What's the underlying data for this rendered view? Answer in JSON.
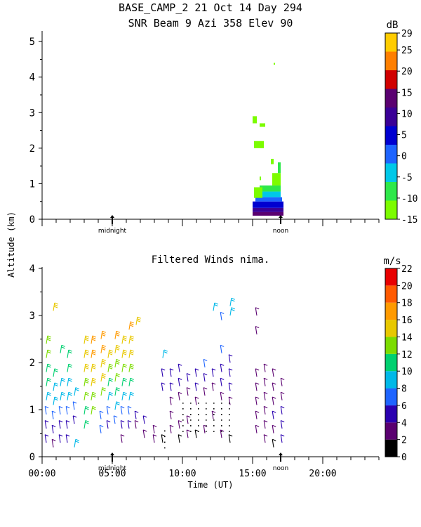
{
  "header": {
    "line1": "BASE_CAMP_2  21 Oct 14 Day 294",
    "line2": "SNR Beam 9 Azi 358 Elev 90"
  },
  "shared": {
    "ylabel": "Altitude (km)",
    "xlabel": "Time (UT)",
    "x_ticklabels": [
      "00:00",
      "05:00",
      "10:00",
      "15:00",
      "20:00"
    ],
    "markers": [
      "midnight",
      "noon"
    ],
    "colors": {
      "snr": [
        "#7cfc00",
        "#2ee84a",
        "#00c8e8",
        "#1e64ff",
        "#0000d0",
        "#3a0096",
        "#5a0070",
        "#d00000",
        "#ff7f00",
        "#ffcc00"
      ],
      "wind": [
        "#000000",
        "#5a0070",
        "#2a00b0",
        "#1e64ff",
        "#00b8e8",
        "#00d070",
        "#7cdc00",
        "#e8c800",
        "#ff9a00",
        "#ff5a00",
        "#e80000"
      ]
    }
  },
  "chart_data": [
    {
      "type": "heatmap",
      "title": "",
      "xlabel": "",
      "ylabel": "Altitude (km)",
      "colorbar_unit": "dB",
      "colorbar_ticks": [
        "29",
        "25",
        "20",
        "15",
        "10",
        "5",
        "0",
        "-5",
        "-10",
        "-15"
      ],
      "x_range_hours": [
        0,
        24
      ],
      "ylim": [
        0,
        5.3
      ],
      "yticks": [
        "0",
        "1",
        "2",
        "3",
        "4",
        "5"
      ],
      "cells": [
        {
          "x0": 15.0,
          "x1": 17.2,
          "y0": 0.1,
          "y1": 0.2,
          "v": 16
        },
        {
          "x0": 15.0,
          "x1": 17.2,
          "y0": 0.2,
          "y1": 0.32,
          "v": 12
        },
        {
          "x0": 15.0,
          "x1": 17.2,
          "y0": 0.32,
          "y1": 0.5,
          "v": 8
        },
        {
          "x0": 15.2,
          "x1": 17.1,
          "y0": 0.5,
          "y1": 0.62,
          "v": 1
        },
        {
          "x0": 15.3,
          "x1": 17.0,
          "y0": 0.62,
          "y1": 0.78,
          "v": -4
        },
        {
          "x0": 15.5,
          "x1": 17.0,
          "y0": 0.78,
          "y1": 0.95,
          "v": -7
        },
        {
          "x0": 15.1,
          "x1": 15.7,
          "y0": 0.6,
          "y1": 0.9,
          "v": -11
        },
        {
          "x0": 16.4,
          "x1": 17.0,
          "y0": 0.95,
          "y1": 1.3,
          "v": -11
        },
        {
          "x0": 16.8,
          "x1": 17.0,
          "y0": 1.3,
          "y1": 1.6,
          "v": -6
        },
        {
          "x0": 15.1,
          "x1": 15.8,
          "y0": 2.0,
          "y1": 2.2,
          "v": -11
        },
        {
          "x0": 15.0,
          "x1": 15.3,
          "y0": 2.7,
          "y1": 2.9,
          "v": -13
        },
        {
          "x0": 15.5,
          "x1": 15.9,
          "y0": 2.6,
          "y1": 2.7,
          "v": -13
        },
        {
          "x0": 16.3,
          "x1": 16.5,
          "y0": 1.55,
          "y1": 1.7,
          "v": -13
        },
        {
          "x0": 15.5,
          "x1": 15.6,
          "y0": 1.1,
          "y1": 1.2,
          "v": -13
        },
        {
          "x0": 16.5,
          "x1": 16.6,
          "y0": 4.35,
          "y1": 4.4,
          "v": -13
        }
      ]
    },
    {
      "type": "scatter",
      "title": "Filtered Winds nima.",
      "xlabel": "Time (UT)",
      "ylabel": "Altitude (km)",
      "colorbar_unit": "m/s",
      "colorbar_ticks": [
        "22",
        "20",
        "18",
        "16",
        "14",
        "12",
        "10",
        "8",
        "6",
        "4",
        "2",
        "0"
      ],
      "x_range_hours": [
        0,
        24
      ],
      "ylim": [
        0,
        4.0
      ],
      "yticks": [
        "0",
        "1",
        "2",
        "3",
        "4"
      ],
      "barbs": [
        {
          "t": 0.3,
          "z": 0.3,
          "s": 4
        },
        {
          "t": 0.3,
          "z": 0.6,
          "s": 5
        },
        {
          "t": 0.3,
          "z": 0.9,
          "s": 7
        },
        {
          "t": 0.3,
          "z": 1.2,
          "s": 9
        },
        {
          "t": 0.3,
          "z": 1.5,
          "s": 10
        },
        {
          "t": 0.3,
          "z": 1.8,
          "s": 11
        },
        {
          "t": 0.3,
          "z": 2.1,
          "s": 12
        },
        {
          "t": 0.3,
          "z": 2.4,
          "s": 13
        },
        {
          "t": 0.8,
          "z": 0.2,
          "s": 3
        },
        {
          "t": 0.8,
          "z": 0.5,
          "s": 5
        },
        {
          "t": 0.8,
          "z": 0.8,
          "s": 6
        },
        {
          "t": 0.8,
          "z": 1.1,
          "s": 8
        },
        {
          "t": 0.8,
          "z": 1.4,
          "s": 9
        },
        {
          "t": 0.8,
          "z": 1.7,
          "s": 10
        },
        {
          "t": 0.8,
          "z": 3.1,
          "s": 15
        },
        {
          "t": 1.3,
          "z": 0.3,
          "s": 4
        },
        {
          "t": 1.3,
          "z": 0.6,
          "s": 5
        },
        {
          "t": 1.3,
          "z": 0.9,
          "s": 6
        },
        {
          "t": 1.3,
          "z": 1.2,
          "s": 8
        },
        {
          "t": 1.3,
          "z": 1.5,
          "s": 9
        },
        {
          "t": 1.3,
          "z": 2.2,
          "s": 11
        },
        {
          "t": 1.8,
          "z": 0.3,
          "s": 4
        },
        {
          "t": 1.8,
          "z": 0.6,
          "s": 5
        },
        {
          "t": 1.8,
          "z": 0.9,
          "s": 6
        },
        {
          "t": 1.8,
          "z": 1.2,
          "s": 8
        },
        {
          "t": 1.8,
          "z": 1.5,
          "s": 9
        },
        {
          "t": 1.8,
          "z": 1.8,
          "s": 10
        },
        {
          "t": 1.8,
          "z": 2.1,
          "s": 11
        },
        {
          "t": 2.3,
          "z": 0.2,
          "s": 9
        },
        {
          "t": 2.3,
          "z": 0.7,
          "s": 5
        },
        {
          "t": 2.3,
          "z": 1.0,
          "s": 7
        },
        {
          "t": 2.3,
          "z": 1.3,
          "s": 9
        },
        {
          "t": 3.0,
          "z": 0.6,
          "s": 10
        },
        {
          "t": 3.0,
          "z": 0.9,
          "s": 11
        },
        {
          "t": 3.0,
          "z": 1.2,
          "s": 12
        },
        {
          "t": 3.0,
          "z": 1.5,
          "s": 13
        },
        {
          "t": 3.0,
          "z": 1.8,
          "s": 14
        },
        {
          "t": 3.0,
          "z": 2.1,
          "s": 15
        },
        {
          "t": 3.0,
          "z": 2.4,
          "s": 15
        },
        {
          "t": 3.5,
          "z": 0.9,
          "s": 12
        },
        {
          "t": 3.5,
          "z": 1.2,
          "s": 13
        },
        {
          "t": 3.5,
          "z": 1.5,
          "s": 14
        },
        {
          "t": 3.5,
          "z": 1.8,
          "s": 15
        },
        {
          "t": 3.5,
          "z": 2.1,
          "s": 16
        },
        {
          "t": 3.5,
          "z": 2.4,
          "s": 16
        },
        {
          "t": 4.2,
          "z": 0.5,
          "s": 6
        },
        {
          "t": 4.2,
          "z": 0.8,
          "s": 7
        },
        {
          "t": 4.2,
          "z": 1.3,
          "s": 12
        },
        {
          "t": 4.2,
          "z": 1.6,
          "s": 14
        },
        {
          "t": 4.2,
          "z": 1.9,
          "s": 15
        },
        {
          "t": 4.2,
          "z": 2.2,
          "s": 16
        },
        {
          "t": 4.2,
          "z": 2.5,
          "s": 17
        },
        {
          "t": 4.7,
          "z": 0.6,
          "s": 5
        },
        {
          "t": 4.7,
          "z": 0.9,
          "s": 6
        },
        {
          "t": 4.7,
          "z": 1.2,
          "s": 8
        },
        {
          "t": 4.7,
          "z": 1.5,
          "s": 11
        },
        {
          "t": 4.7,
          "z": 1.8,
          "s": 13
        },
        {
          "t": 4.7,
          "z": 2.1,
          "s": 15
        },
        {
          "t": 5.2,
          "z": 0.7,
          "s": 6
        },
        {
          "t": 5.2,
          "z": 1.0,
          "s": 8
        },
        {
          "t": 5.2,
          "z": 1.3,
          "s": 10
        },
        {
          "t": 5.2,
          "z": 1.6,
          "s": 12
        },
        {
          "t": 5.2,
          "z": 1.9,
          "s": 13
        },
        {
          "t": 5.2,
          "z": 2.2,
          "s": 14
        },
        {
          "t": 5.2,
          "z": 2.5,
          "s": 16
        },
        {
          "t": 5.7,
          "z": 0.3,
          "s": 3
        },
        {
          "t": 5.7,
          "z": 0.6,
          "s": 4
        },
        {
          "t": 5.7,
          "z": 0.9,
          "s": 6
        },
        {
          "t": 5.7,
          "z": 1.2,
          "s": 8
        },
        {
          "t": 5.7,
          "z": 1.5,
          "s": 10
        },
        {
          "t": 5.7,
          "z": 1.8,
          "s": 12
        },
        {
          "t": 5.7,
          "z": 2.1,
          "s": 14
        },
        {
          "t": 5.7,
          "z": 2.4,
          "s": 15
        },
        {
          "t": 6.2,
          "z": 0.6,
          "s": 5
        },
        {
          "t": 6.2,
          "z": 0.9,
          "s": 7
        },
        {
          "t": 6.2,
          "z": 1.2,
          "s": 9
        },
        {
          "t": 6.2,
          "z": 1.5,
          "s": 11
        },
        {
          "t": 6.2,
          "z": 1.8,
          "s": 13
        },
        {
          "t": 6.2,
          "z": 2.1,
          "s": 14
        },
        {
          "t": 6.2,
          "z": 2.4,
          "s": 15
        },
        {
          "t": 6.2,
          "z": 2.7,
          "s": 16
        },
        {
          "t": 6.7,
          "z": 0.6,
          "s": 3
        },
        {
          "t": 6.7,
          "z": 0.8,
          "s": 4
        },
        {
          "t": 6.7,
          "z": 2.8,
          "s": 15
        },
        {
          "t": 7.3,
          "z": 0.4,
          "s": 3
        },
        {
          "t": 7.3,
          "z": 0.7,
          "s": 4
        },
        {
          "t": 8.0,
          "z": 0.3,
          "s": 2
        },
        {
          "t": 8.0,
          "z": 0.5,
          "s": 3
        },
        {
          "t": 8.6,
          "z": 0.3,
          "s": 1
        },
        {
          "t": 8.6,
          "z": 1.4,
          "s": 5
        },
        {
          "t": 8.6,
          "z": 1.7,
          "s": 5
        },
        {
          "t": 8.6,
          "z": 2.1,
          "s": 9
        },
        {
          "t": 9.2,
          "z": 0.5,
          "s": 2
        },
        {
          "t": 9.2,
          "z": 0.8,
          "s": 2
        },
        {
          "t": 9.2,
          "z": 1.1,
          "s": 3
        },
        {
          "t": 9.2,
          "z": 1.4,
          "s": 4
        },
        {
          "t": 9.2,
          "z": 1.7,
          "s": 5
        },
        {
          "t": 9.8,
          "z": 0.3,
          "s": 1
        },
        {
          "t": 9.8,
          "z": 0.6,
          "s": 2
        },
        {
          "t": 9.8,
          "z": 1.2,
          "s": 3
        },
        {
          "t": 9.8,
          "z": 1.5,
          "s": 4
        },
        {
          "t": 9.8,
          "z": 1.8,
          "s": 5
        },
        {
          "t": 10.4,
          "z": 0.4,
          "s": 2
        },
        {
          "t": 10.4,
          "z": 0.7,
          "s": 3
        },
        {
          "t": 10.4,
          "z": 1.3,
          "s": 3
        },
        {
          "t": 10.4,
          "z": 1.6,
          "s": 4
        },
        {
          "t": 11.0,
          "z": 0.4,
          "s": 1
        },
        {
          "t": 11.0,
          "z": 1.1,
          "s": 3
        },
        {
          "t": 11.0,
          "z": 1.4,
          "s": 4
        },
        {
          "t": 11.0,
          "z": 1.7,
          "s": 5
        },
        {
          "t": 11.6,
          "z": 0.5,
          "s": 2
        },
        {
          "t": 11.6,
          "z": 1.3,
          "s": 3
        },
        {
          "t": 11.6,
          "z": 1.6,
          "s": 4
        },
        {
          "t": 11.6,
          "z": 1.9,
          "s": 6
        },
        {
          "t": 12.2,
          "z": 0.8,
          "s": 2
        },
        {
          "t": 12.2,
          "z": 1.4,
          "s": 3
        },
        {
          "t": 12.2,
          "z": 1.7,
          "s": 5
        },
        {
          "t": 12.2,
          "z": 3.1,
          "s": 8
        },
        {
          "t": 12.8,
          "z": 0.4,
          "s": 2
        },
        {
          "t": 12.8,
          "z": 1.2,
          "s": 3
        },
        {
          "t": 12.8,
          "z": 1.5,
          "s": 4
        },
        {
          "t": 12.8,
          "z": 1.8,
          "s": 5
        },
        {
          "t": 12.8,
          "z": 2.2,
          "s": 6
        },
        {
          "t": 12.8,
          "z": 2.9,
          "s": 7
        },
        {
          "t": 13.4,
          "z": 0.3,
          "s": 1
        },
        {
          "t": 13.4,
          "z": 1.1,
          "s": 3
        },
        {
          "t": 13.4,
          "z": 1.4,
          "s": 4
        },
        {
          "t": 13.4,
          "z": 1.7,
          "s": 5
        },
        {
          "t": 13.4,
          "z": 2.0,
          "s": 5
        },
        {
          "t": 13.4,
          "z": 3.0,
          "s": 8
        },
        {
          "t": 13.4,
          "z": 3.2,
          "s": 9
        },
        {
          "t": 15.3,
          "z": 0.5,
          "s": 3
        },
        {
          "t": 15.3,
          "z": 0.8,
          "s": 3
        },
        {
          "t": 15.3,
          "z": 1.1,
          "s": 3
        },
        {
          "t": 15.3,
          "z": 1.4,
          "s": 3
        },
        {
          "t": 15.3,
          "z": 1.7,
          "s": 2
        },
        {
          "t": 15.3,
          "z": 2.6,
          "s": 2
        },
        {
          "t": 15.3,
          "z": 3.0,
          "s": 2
        },
        {
          "t": 15.9,
          "z": 0.3,
          "s": 2
        },
        {
          "t": 15.9,
          "z": 0.6,
          "s": 3
        },
        {
          "t": 15.9,
          "z": 0.9,
          "s": 3
        },
        {
          "t": 15.9,
          "z": 1.2,
          "s": 3
        },
        {
          "t": 15.9,
          "z": 1.5,
          "s": 3
        },
        {
          "t": 15.9,
          "z": 1.8,
          "s": 3
        },
        {
          "t": 16.5,
          "z": 0.2,
          "s": 1
        },
        {
          "t": 16.5,
          "z": 0.5,
          "s": 3
        },
        {
          "t": 16.5,
          "z": 0.8,
          "s": 4
        },
        {
          "t": 16.5,
          "z": 1.1,
          "s": 3
        },
        {
          "t": 16.5,
          "z": 1.4,
          "s": 3
        },
        {
          "t": 16.5,
          "z": 1.7,
          "s": 2
        },
        {
          "t": 17.1,
          "z": 0.3,
          "s": 4
        },
        {
          "t": 17.1,
          "z": 0.6,
          "s": 5
        },
        {
          "t": 17.1,
          "z": 0.9,
          "s": 4
        },
        {
          "t": 17.1,
          "z": 1.2,
          "s": 3
        },
        {
          "t": 17.1,
          "z": 1.5,
          "s": 3
        }
      ]
    }
  ]
}
